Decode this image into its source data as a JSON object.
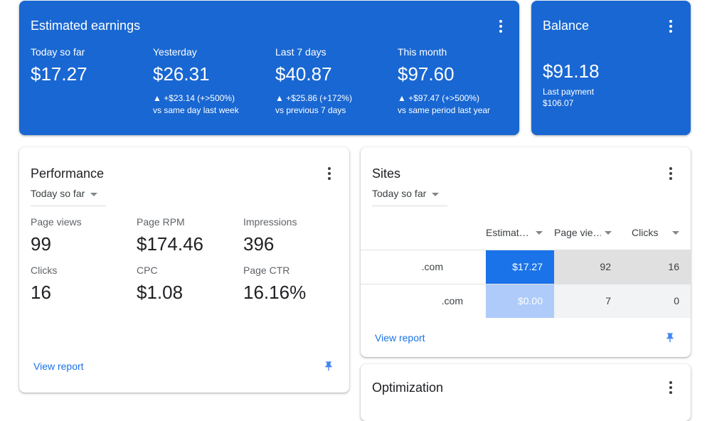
{
  "estimated_earnings": {
    "title": "Estimated earnings",
    "columns": [
      {
        "label": "Today so far",
        "value": "$17.27",
        "delta": "",
        "compare": ""
      },
      {
        "label": "Yesterday",
        "value": "$26.31",
        "delta": "▲ +$23.14 (+>500%)",
        "compare": "vs same day last week"
      },
      {
        "label": "Last 7 days",
        "value": "$40.87",
        "delta": "▲ +$25.86 (+172%)",
        "compare": "vs previous 7 days"
      },
      {
        "label": "This month",
        "value": "$97.60",
        "delta": "▲ +$97.47 (+>500%)",
        "compare": "vs same period last year"
      }
    ]
  },
  "balance": {
    "title": "Balance",
    "value": "$91.18",
    "last_payment_label": "Last payment",
    "last_payment_value": "$106.07"
  },
  "performance": {
    "title": "Performance",
    "range": "Today so far",
    "metrics": [
      {
        "label": "Page views",
        "value": "99"
      },
      {
        "label": "Page RPM",
        "value": "$174.46"
      },
      {
        "label": "Impressions",
        "value": "396"
      },
      {
        "label": "Clicks",
        "value": "16"
      },
      {
        "label": "CPC",
        "value": "$1.08"
      },
      {
        "label": "Page CTR",
        "value": "16.16%"
      }
    ],
    "view_report": "View report"
  },
  "sites": {
    "title": "Sites",
    "range": "Today so far",
    "headers": [
      "Estimat…",
      "Page vie…",
      "Clicks"
    ],
    "rows": [
      {
        "site": ".com",
        "earnings": "$17.27",
        "page_views": "92",
        "clicks": "16"
      },
      {
        "site": ".com",
        "earnings": "$0.00",
        "page_views": "7",
        "clicks": "0"
      }
    ],
    "view_report": "View report"
  },
  "optimization": {
    "title": "Optimization"
  },
  "colors": {
    "primary_blue": "#1967d2",
    "link_blue": "#1a73e8",
    "cell_highlight": "#1a73e8",
    "cell_light": "#aecbfa",
    "cell_gray": "#e0e0e0",
    "pin_blue": "#4285f4"
  }
}
